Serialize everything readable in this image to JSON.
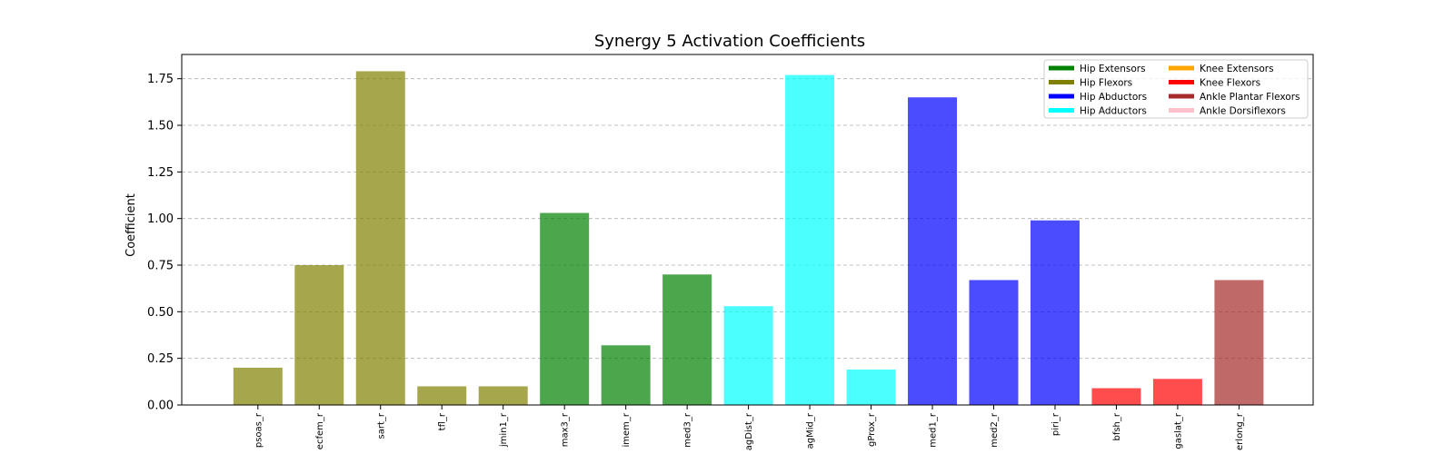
{
  "chart_data": {
    "type": "bar",
    "title": "Synergy 5 Activation Coefficients",
    "xlabel": "",
    "ylabel": "Coefficient",
    "ylim": [
      0,
      1.88
    ],
    "yticks": [
      0.0,
      0.25,
      0.5,
      0.75,
      1.0,
      1.25,
      1.5,
      1.75
    ],
    "ytick_labels": [
      "0.00",
      "0.25",
      "0.50",
      "0.75",
      "1.00",
      "1.25",
      "1.50",
      "1.75"
    ],
    "grid": "y-dashed",
    "legend_position": "top-right",
    "legend": [
      {
        "label": "Hip Extensors",
        "color": "#008000"
      },
      {
        "label": "Hip Flexors",
        "color": "#808000"
      },
      {
        "label": "Hip Abductors",
        "color": "#0000ff"
      },
      {
        "label": "Hip Adductors",
        "color": "#00ffff"
      },
      {
        "label": "Knee Extensors",
        "color": "#ffa500"
      },
      {
        "label": "Knee Flexors",
        "color": "#ff0000"
      },
      {
        "label": "Ankle Plantar Flexors",
        "color": "#a52a2a"
      },
      {
        "label": "Ankle Dorsiflexors",
        "color": "#ffc0cb"
      }
    ],
    "categories": [
      "psoas_r",
      "ecfem_r",
      "sart_r",
      "tfl_r",
      "jmin1_r",
      "max3_r",
      "imem_r",
      "med3_r",
      "agDist_r",
      "agMid_r",
      "gProx_r",
      "med1_r",
      "med2_r",
      "piri_r",
      "bfsh_r",
      "gaslat_r",
      "erlong_r"
    ],
    "values": [
      0.2,
      0.75,
      1.79,
      0.1,
      0.1,
      1.03,
      0.32,
      0.7,
      0.53,
      1.77,
      0.19,
      1.65,
      0.67,
      0.99,
      0.09,
      0.14,
      0.67
    ],
    "groups": [
      "Hip Flexors",
      "Hip Flexors",
      "Hip Flexors",
      "Hip Flexors",
      "Hip Flexors",
      "Hip Extensors",
      "Hip Extensors",
      "Hip Extensors",
      "Hip Adductors",
      "Hip Adductors",
      "Hip Adductors",
      "Hip Abductors",
      "Hip Abductors",
      "Hip Abductors",
      "Knee Flexors",
      "Knee Flexors",
      "Ankle Plantar Flexors"
    ],
    "bar_opacity": 0.7
  }
}
